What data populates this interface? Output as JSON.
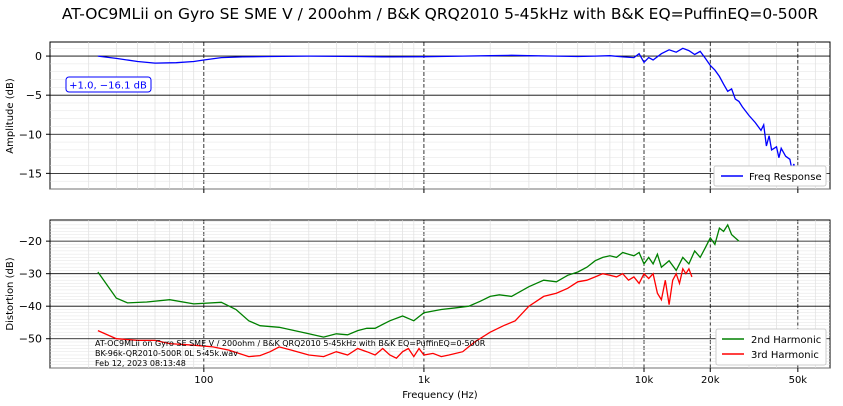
{
  "title": "AT-OC9MLii  on Gyro SE SME V / 200ohm  / B&K QRQ2010 5-45kHz with B&K EQ=PuffinEQ=0-500R",
  "chart_data": [
    {
      "type": "line",
      "ylabel": "Amplitude (dB)",
      "xscale": "log",
      "xlim": [
        20,
        70000
      ],
      "ylim": [
        -17,
        1.8
      ],
      "yticks": [
        0,
        -5,
        -10,
        -15
      ],
      "grid": true,
      "legend_placement": "bottom-right",
      "annotation": "+1.0, −16.1 dB",
      "series": [
        {
          "name": "Freq Response",
          "color": "#0000ff",
          "points": [
            [
              33,
              0
            ],
            [
              40,
              -0.3
            ],
            [
              50,
              -0.7
            ],
            [
              60,
              -0.9
            ],
            [
              75,
              -0.85
            ],
            [
              90,
              -0.7
            ],
            [
              100,
              -0.5
            ],
            [
              120,
              -0.2
            ],
            [
              150,
              -0.1
            ],
            [
              200,
              -0.05
            ],
            [
              300,
              0
            ],
            [
              500,
              -0.05
            ],
            [
              700,
              -0.1
            ],
            [
              1000,
              -0.08
            ],
            [
              1500,
              0
            ],
            [
              2000,
              0.05
            ],
            [
              2500,
              0.1
            ],
            [
              3000,
              0.05
            ],
            [
              4000,
              0
            ],
            [
              5000,
              -0.05
            ],
            [
              6000,
              0
            ],
            [
              7000,
              0.05
            ],
            [
              8000,
              -0.1
            ],
            [
              9000,
              -0.2
            ],
            [
              9500,
              0.3
            ],
            [
              10000,
              -0.8
            ],
            [
              10500,
              -0.2
            ],
            [
              11000,
              -0.5
            ],
            [
              12000,
              0.3
            ],
            [
              13000,
              0.8
            ],
            [
              14000,
              0.5
            ],
            [
              15000,
              1.0
            ],
            [
              16000,
              0.7
            ],
            [
              17000,
              0.2
            ],
            [
              18000,
              0.6
            ],
            [
              19000,
              -0.3
            ],
            [
              20000,
              -1.2
            ],
            [
              21000,
              -1.8
            ],
            [
              22000,
              -2.6
            ],
            [
              23000,
              -3.6
            ],
            [
              24000,
              -4.5
            ],
            [
              25000,
              -4.2
            ],
            [
              26000,
              -5.5
            ],
            [
              27000,
              -5.8
            ],
            [
              28000,
              -6.5
            ],
            [
              30000,
              -7.6
            ],
            [
              32000,
              -8.5
            ],
            [
              34000,
              -9.5
            ],
            [
              35000,
              -8.8
            ],
            [
              36000,
              -11.5
            ],
            [
              37000,
              -10.2
            ],
            [
              38000,
              -12.0
            ],
            [
              40000,
              -11.6
            ],
            [
              41000,
              -13.0
            ],
            [
              42000,
              -11.8
            ],
            [
              44000,
              -12.8
            ],
            [
              46000,
              -13.2
            ],
            [
              47000,
              -14.5
            ],
            [
              48000,
              -13.8
            ],
            [
              49000,
              -15.8
            ],
            [
              50000,
              -14.2
            ]
          ]
        }
      ]
    },
    {
      "type": "line",
      "xlabel": "Frequency (Hz)",
      "ylabel": "Distortion (dB)",
      "xscale": "log",
      "xlim": [
        20,
        70000
      ],
      "ylim": [
        -59,
        -13.5
      ],
      "yticks": [
        -20,
        -30,
        -40,
        -50
      ],
      "xticks": [
        "100",
        "1k",
        "10k",
        "20k",
        "50k"
      ],
      "grid": true,
      "legend_placement": "bottom-right",
      "annotation": [
        "AT-OC9MLii  on Gyro SE SME V / 200ohm  / B&K QRQ2010 5-45kHz with B&K EQ=PuffinEQ=0-500R",
        "BK-96k-QR2010-500R 0L 5-45k.wav",
        "Feb 12, 2023 08:13:48"
      ],
      "series": [
        {
          "name": "2nd Harmonic",
          "color": "#008000",
          "points": [
            [
              33,
              -29.5
            ],
            [
              40,
              -37.5
            ],
            [
              45,
              -39
            ],
            [
              55,
              -38.7
            ],
            [
              70,
              -38
            ],
            [
              90,
              -39.3
            ],
            [
              120,
              -38.8
            ],
            [
              140,
              -41
            ],
            [
              160,
              -44.5
            ],
            [
              180,
              -46
            ],
            [
              220,
              -46.5
            ],
            [
              300,
              -48.5
            ],
            [
              350,
              -49.5
            ],
            [
              400,
              -48.5
            ],
            [
              450,
              -48.8
            ],
            [
              500,
              -47.5
            ],
            [
              550,
              -46.8
            ],
            [
              600,
              -46.8
            ],
            [
              700,
              -44.5
            ],
            [
              800,
              -43
            ],
            [
              900,
              -44.5
            ],
            [
              1000,
              -42
            ],
            [
              1200,
              -41
            ],
            [
              1400,
              -40.5
            ],
            [
              1600,
              -40
            ],
            [
              1800,
              -38.5
            ],
            [
              2000,
              -37
            ],
            [
              2200,
              -36.5
            ],
            [
              2500,
              -37
            ],
            [
              3000,
              -34
            ],
            [
              3500,
              -32
            ],
            [
              4000,
              -32.5
            ],
            [
              4500,
              -30.5
            ],
            [
              5000,
              -29.5
            ],
            [
              5500,
              -28
            ],
            [
              6000,
              -26
            ],
            [
              6500,
              -25
            ],
            [
              7000,
              -24.5
            ],
            [
              7500,
              -25
            ],
            [
              8000,
              -23.5
            ],
            [
              8500,
              -24
            ],
            [
              9000,
              -24.5
            ],
            [
              9500,
              -23.5
            ],
            [
              10000,
              -27
            ],
            [
              10500,
              -25
            ],
            [
              11000,
              -27
            ],
            [
              11500,
              -24
            ],
            [
              12000,
              -28
            ],
            [
              13000,
              -26
            ],
            [
              14000,
              -29
            ],
            [
              15000,
              -25
            ],
            [
              16000,
              -27
            ],
            [
              17000,
              -23
            ],
            [
              18000,
              -25
            ],
            [
              19000,
              -22
            ],
            [
              20000,
              -19
            ],
            [
              21000,
              -21
            ],
            [
              22000,
              -16
            ],
            [
              23000,
              -17
            ],
            [
              24000,
              -15
            ],
            [
              25000,
              -18
            ],
            [
              27000,
              -20
            ]
          ]
        },
        {
          "name": "3rd Harmonic",
          "color": "#ff0000",
          "points": [
            [
              33,
              -47.5
            ],
            [
              40,
              -50
            ],
            [
              50,
              -50.5
            ],
            [
              60,
              -50.5
            ],
            [
              70,
              -51.5
            ],
            [
              90,
              -52
            ],
            [
              110,
              -52.5
            ],
            [
              130,
              -53.5
            ],
            [
              160,
              -55.5
            ],
            [
              180,
              -55.2
            ],
            [
              200,
              -54
            ],
            [
              220,
              -52.5
            ],
            [
              250,
              -53.5
            ],
            [
              300,
              -55
            ],
            [
              350,
              -55.5
            ],
            [
              400,
              -54
            ],
            [
              450,
              -55
            ],
            [
              500,
              -53
            ],
            [
              550,
              -54
            ],
            [
              600,
              -55
            ],
            [
              650,
              -53
            ],
            [
              700,
              -55
            ],
            [
              750,
              -56
            ],
            [
              800,
              -54
            ],
            [
              850,
              -53
            ],
            [
              900,
              -55.5
            ],
            [
              950,
              -53
            ],
            [
              1000,
              -55
            ],
            [
              1100,
              -54.5
            ],
            [
              1200,
              -55.5
            ],
            [
              1300,
              -55
            ],
            [
              1500,
              -54
            ],
            [
              1700,
              -51
            ],
            [
              2000,
              -48
            ],
            [
              2300,
              -46
            ],
            [
              2600,
              -44.5
            ],
            [
              3000,
              -40
            ],
            [
              3500,
              -37
            ],
            [
              4000,
              -36
            ],
            [
              4500,
              -34.5
            ],
            [
              5000,
              -32.5
            ],
            [
              5500,
              -32
            ],
            [
              6000,
              -31
            ],
            [
              6500,
              -30
            ],
            [
              7000,
              -30.5
            ],
            [
              7500,
              -31
            ],
            [
              8000,
              -30
            ],
            [
              8500,
              -32
            ],
            [
              9000,
              -31
            ],
            [
              9500,
              -33
            ],
            [
              10000,
              -30
            ],
            [
              10500,
              -31.5
            ],
            [
              11000,
              -30
            ],
            [
              11500,
              -36
            ],
            [
              12000,
              -38
            ],
            [
              12500,
              -32
            ],
            [
              13000,
              -39.5
            ],
            [
              13500,
              -32
            ],
            [
              14000,
              -30
            ],
            [
              14500,
              -33
            ],
            [
              15000,
              -28.5
            ],
            [
              15500,
              -30
            ],
            [
              16000,
              -28.5
            ],
            [
              16500,
              -31
            ]
          ]
        }
      ]
    }
  ]
}
